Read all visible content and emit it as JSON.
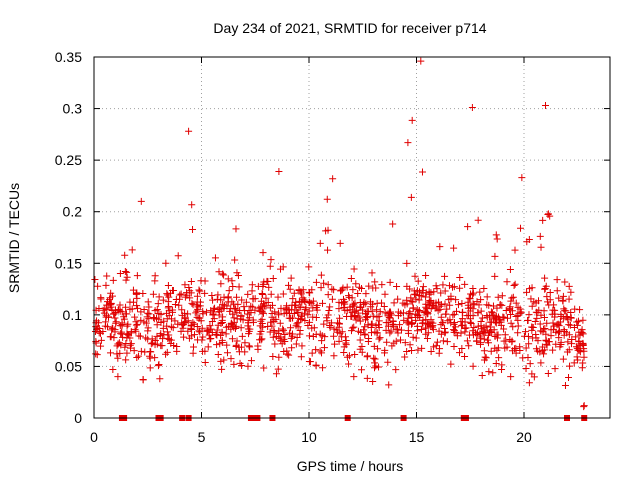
{
  "chart_data": {
    "type": "scatter",
    "title": "Day 234 of 2021, SRMTID for receiver p714",
    "xlabel": "GPS time / hours",
    "ylabel": "SRMTID / TECUs",
    "xlim": [
      0,
      24
    ],
    "ylim": [
      0,
      0.35
    ],
    "x_ticks": [
      0,
      5,
      10,
      15,
      20
    ],
    "x_tick_labels": [
      "0",
      "5",
      "10",
      "15",
      "20"
    ],
    "y_ticks": [
      0,
      0.05,
      0.1,
      0.15,
      0.2,
      0.25,
      0.3,
      0.35
    ],
    "y_tick_labels": [
      "0",
      "0.05",
      "0.1",
      "0.15",
      "0.2",
      "0.25",
      "0.3",
      "0.35"
    ],
    "grid": true,
    "marker": "plus",
    "colors": {
      "series": "#e00000",
      "grid": "#a0a0a0",
      "frame": "#000000"
    },
    "zero_marks_x": [
      1.3,
      1.4,
      3.0,
      3.1,
      4.1,
      4.4,
      7.3,
      7.4,
      7.5,
      7.6,
      8.3,
      11.8,
      14.4,
      17.2,
      17.3,
      22.0,
      22.8
    ],
    "envelope": [
      {
        "x": 0.0,
        "lo": 0.05,
        "hi": 0.15
      },
      {
        "x": 1.0,
        "lo": 0.04,
        "hi": 0.15
      },
      {
        "x": 2.0,
        "lo": 0.03,
        "hi": 0.19
      },
      {
        "x": 2.5,
        "lo": 0.02,
        "hi": 0.15
      },
      {
        "x": 3.5,
        "lo": 0.05,
        "hi": 0.16
      },
      {
        "x": 4.0,
        "lo": 0.05,
        "hi": 0.24
      },
      {
        "x": 4.5,
        "lo": 0.06,
        "hi": 0.28
      },
      {
        "x": 5.5,
        "lo": 0.04,
        "hi": 0.21
      },
      {
        "x": 6.5,
        "lo": 0.05,
        "hi": 0.19
      },
      {
        "x": 7.5,
        "lo": 0.05,
        "hi": 0.15
      },
      {
        "x": 8.5,
        "lo": 0.04,
        "hi": 0.24
      },
      {
        "x": 9.5,
        "lo": 0.05,
        "hi": 0.18
      },
      {
        "x": 10.5,
        "lo": 0.05,
        "hi": 0.19
      },
      {
        "x": 11.0,
        "lo": 0.04,
        "hi": 0.23
      },
      {
        "x": 12.5,
        "lo": 0.04,
        "hi": 0.16
      },
      {
        "x": 13.5,
        "lo": 0.03,
        "hi": 0.17
      },
      {
        "x": 14.5,
        "lo": 0.04,
        "hi": 0.27
      },
      {
        "x": 15.2,
        "lo": 0.06,
        "hi": 0.35
      },
      {
        "x": 16.5,
        "lo": 0.05,
        "hi": 0.2
      },
      {
        "x": 17.5,
        "lo": 0.04,
        "hi": 0.3
      },
      {
        "x": 18.5,
        "lo": 0.04,
        "hi": 0.17
      },
      {
        "x": 19.5,
        "lo": 0.04,
        "hi": 0.23
      },
      {
        "x": 20.5,
        "lo": 0.03,
        "hi": 0.16
      },
      {
        "x": 21.0,
        "lo": 0.04,
        "hi": 0.3
      },
      {
        "x": 22.0,
        "lo": 0.03,
        "hi": 0.15
      },
      {
        "x": 22.8,
        "lo": 0.01,
        "hi": 0.11
      }
    ],
    "point_count": 1400,
    "notable_points": [
      {
        "x": 15.2,
        "y": 0.346
      },
      {
        "x": 21.0,
        "y": 0.303
      },
      {
        "x": 17.6,
        "y": 0.301
      },
      {
        "x": 4.4,
        "y": 0.278
      },
      {
        "x": 14.6,
        "y": 0.267
      },
      {
        "x": 8.6,
        "y": 0.239
      },
      {
        "x": 11.1,
        "y": 0.232
      },
      {
        "x": 19.9,
        "y": 0.233
      },
      {
        "x": 2.2,
        "y": 0.21
      },
      {
        "x": 22.8,
        "y": 0.012
      }
    ]
  }
}
